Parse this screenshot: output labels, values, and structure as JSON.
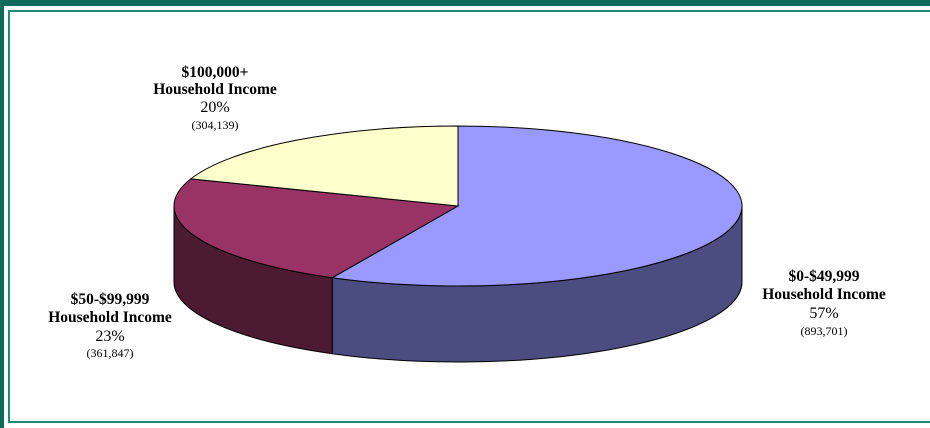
{
  "chart_data": {
    "type": "pie",
    "title": "",
    "slices": [
      {
        "line1": "$0-$49,999",
        "line2": "Household Income",
        "percent_label": "57%",
        "count_label": "(893,701)",
        "value": 893701,
        "top_color": "#9999ff",
        "side_color": "#4b4d80"
      },
      {
        "line1": "$50-$99,999",
        "line2": "Household Income",
        "percent_label": "23%",
        "count_label": "(361,847)",
        "value": 361847,
        "top_color": "#993366",
        "side_color": "#4c1a33"
      },
      {
        "line1": "$100,000+",
        "line2": "Household Income",
        "percent_label": "20%",
        "count_label": "(304,139)",
        "value": 304139,
        "top_color": "#ffffcc",
        "side_color": "#80806a"
      }
    ],
    "three_d": true,
    "start_angle_deg": -90,
    "direction": "clockwise"
  }
}
